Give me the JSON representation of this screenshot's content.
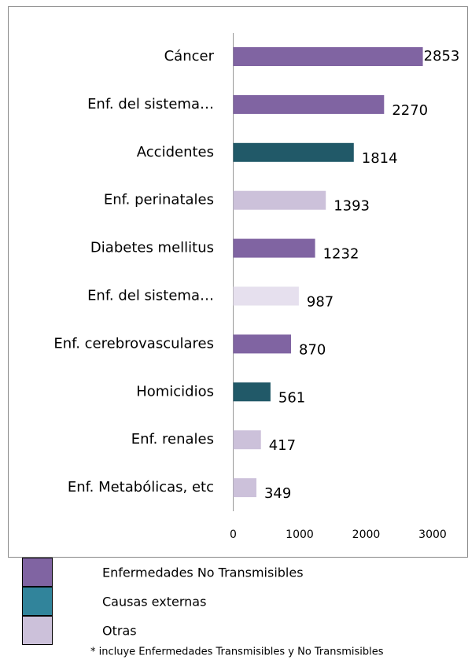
{
  "chart_data": {
    "type": "bar",
    "orientation": "horizontal",
    "categories": [
      "Cáncer",
      "Enf. del sistema…",
      "Accidentes",
      "Enf. perinatales",
      "Diabetes mellitus",
      "Enf. del sistema…",
      "Enf. cerebrovasculares",
      "Homicidios",
      "Enf. renales",
      "Enf. Metabólicas, etc"
    ],
    "values": [
      2853,
      2270,
      1814,
      1393,
      1232,
      987,
      870,
      561,
      417,
      349
    ],
    "colors": [
      "#8064a2",
      "#8064a2",
      "#215968",
      "#ccc1da",
      "#8064a2",
      "#e6e0ee",
      "#8064a2",
      "#215968",
      "#ccc1da",
      "#ccc1da"
    ],
    "xlim": [
      0,
      3000
    ],
    "xticks": [
      0,
      1000,
      2000,
      3000
    ],
    "legend": [
      {
        "label": "Enfermedades No Transmisibles",
        "color": "#8064a2"
      },
      {
        "label": "Causas externas",
        "color": "#31849b"
      },
      {
        "label": "Otras",
        "color": "#ccc1da"
      }
    ],
    "footnote": "* incluye Enfermedades Transmisibles y No Transmisibles"
  }
}
